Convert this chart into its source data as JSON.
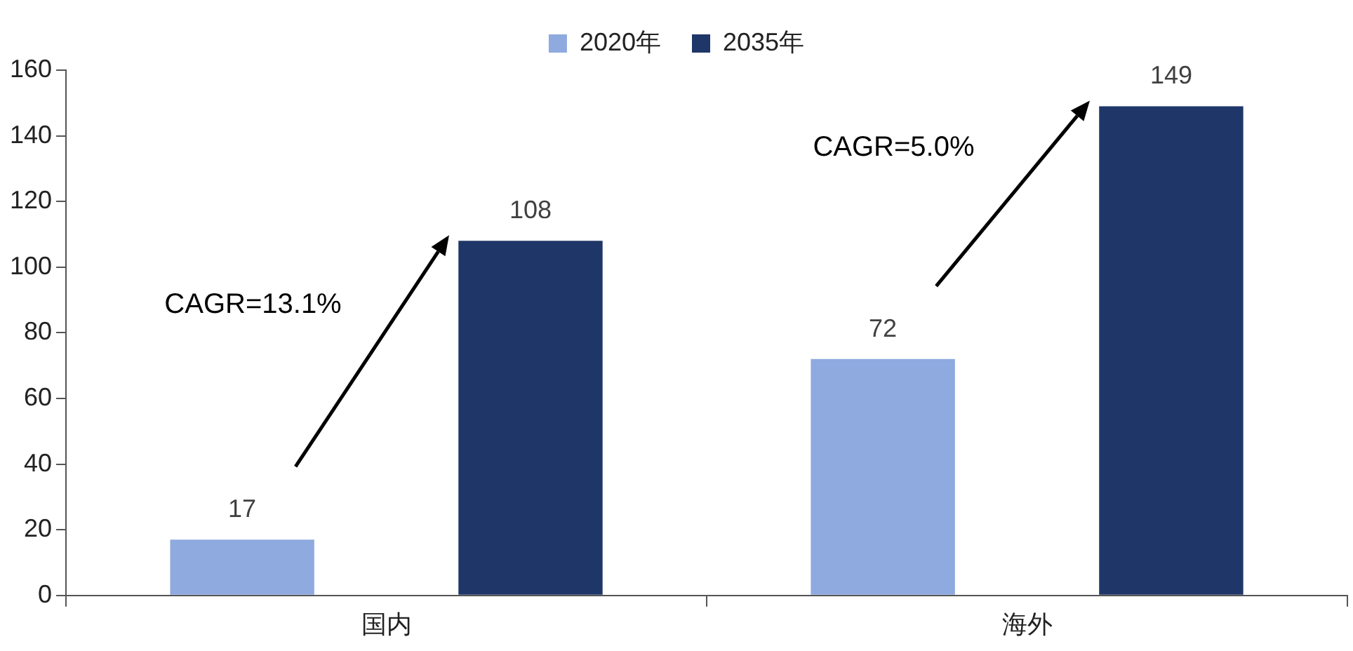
{
  "chart_data": {
    "type": "bar",
    "categories": [
      "国内",
      "海外"
    ],
    "series": [
      {
        "name": "2020年",
        "color": "#8eaadf",
        "values": [
          17,
          72
        ]
      },
      {
        "name": "2035年",
        "color": "#1f3768",
        "values": [
          108,
          149
        ]
      }
    ],
    "ylim": [
      0,
      160
    ],
    "yticks": [
      0,
      20,
      40,
      60,
      80,
      100,
      120,
      140,
      160
    ],
    "grid": false,
    "legend": "top",
    "data_labels": true,
    "annotations": [
      "CAGR=13.1%",
      "CAGR=5.0%"
    ]
  }
}
